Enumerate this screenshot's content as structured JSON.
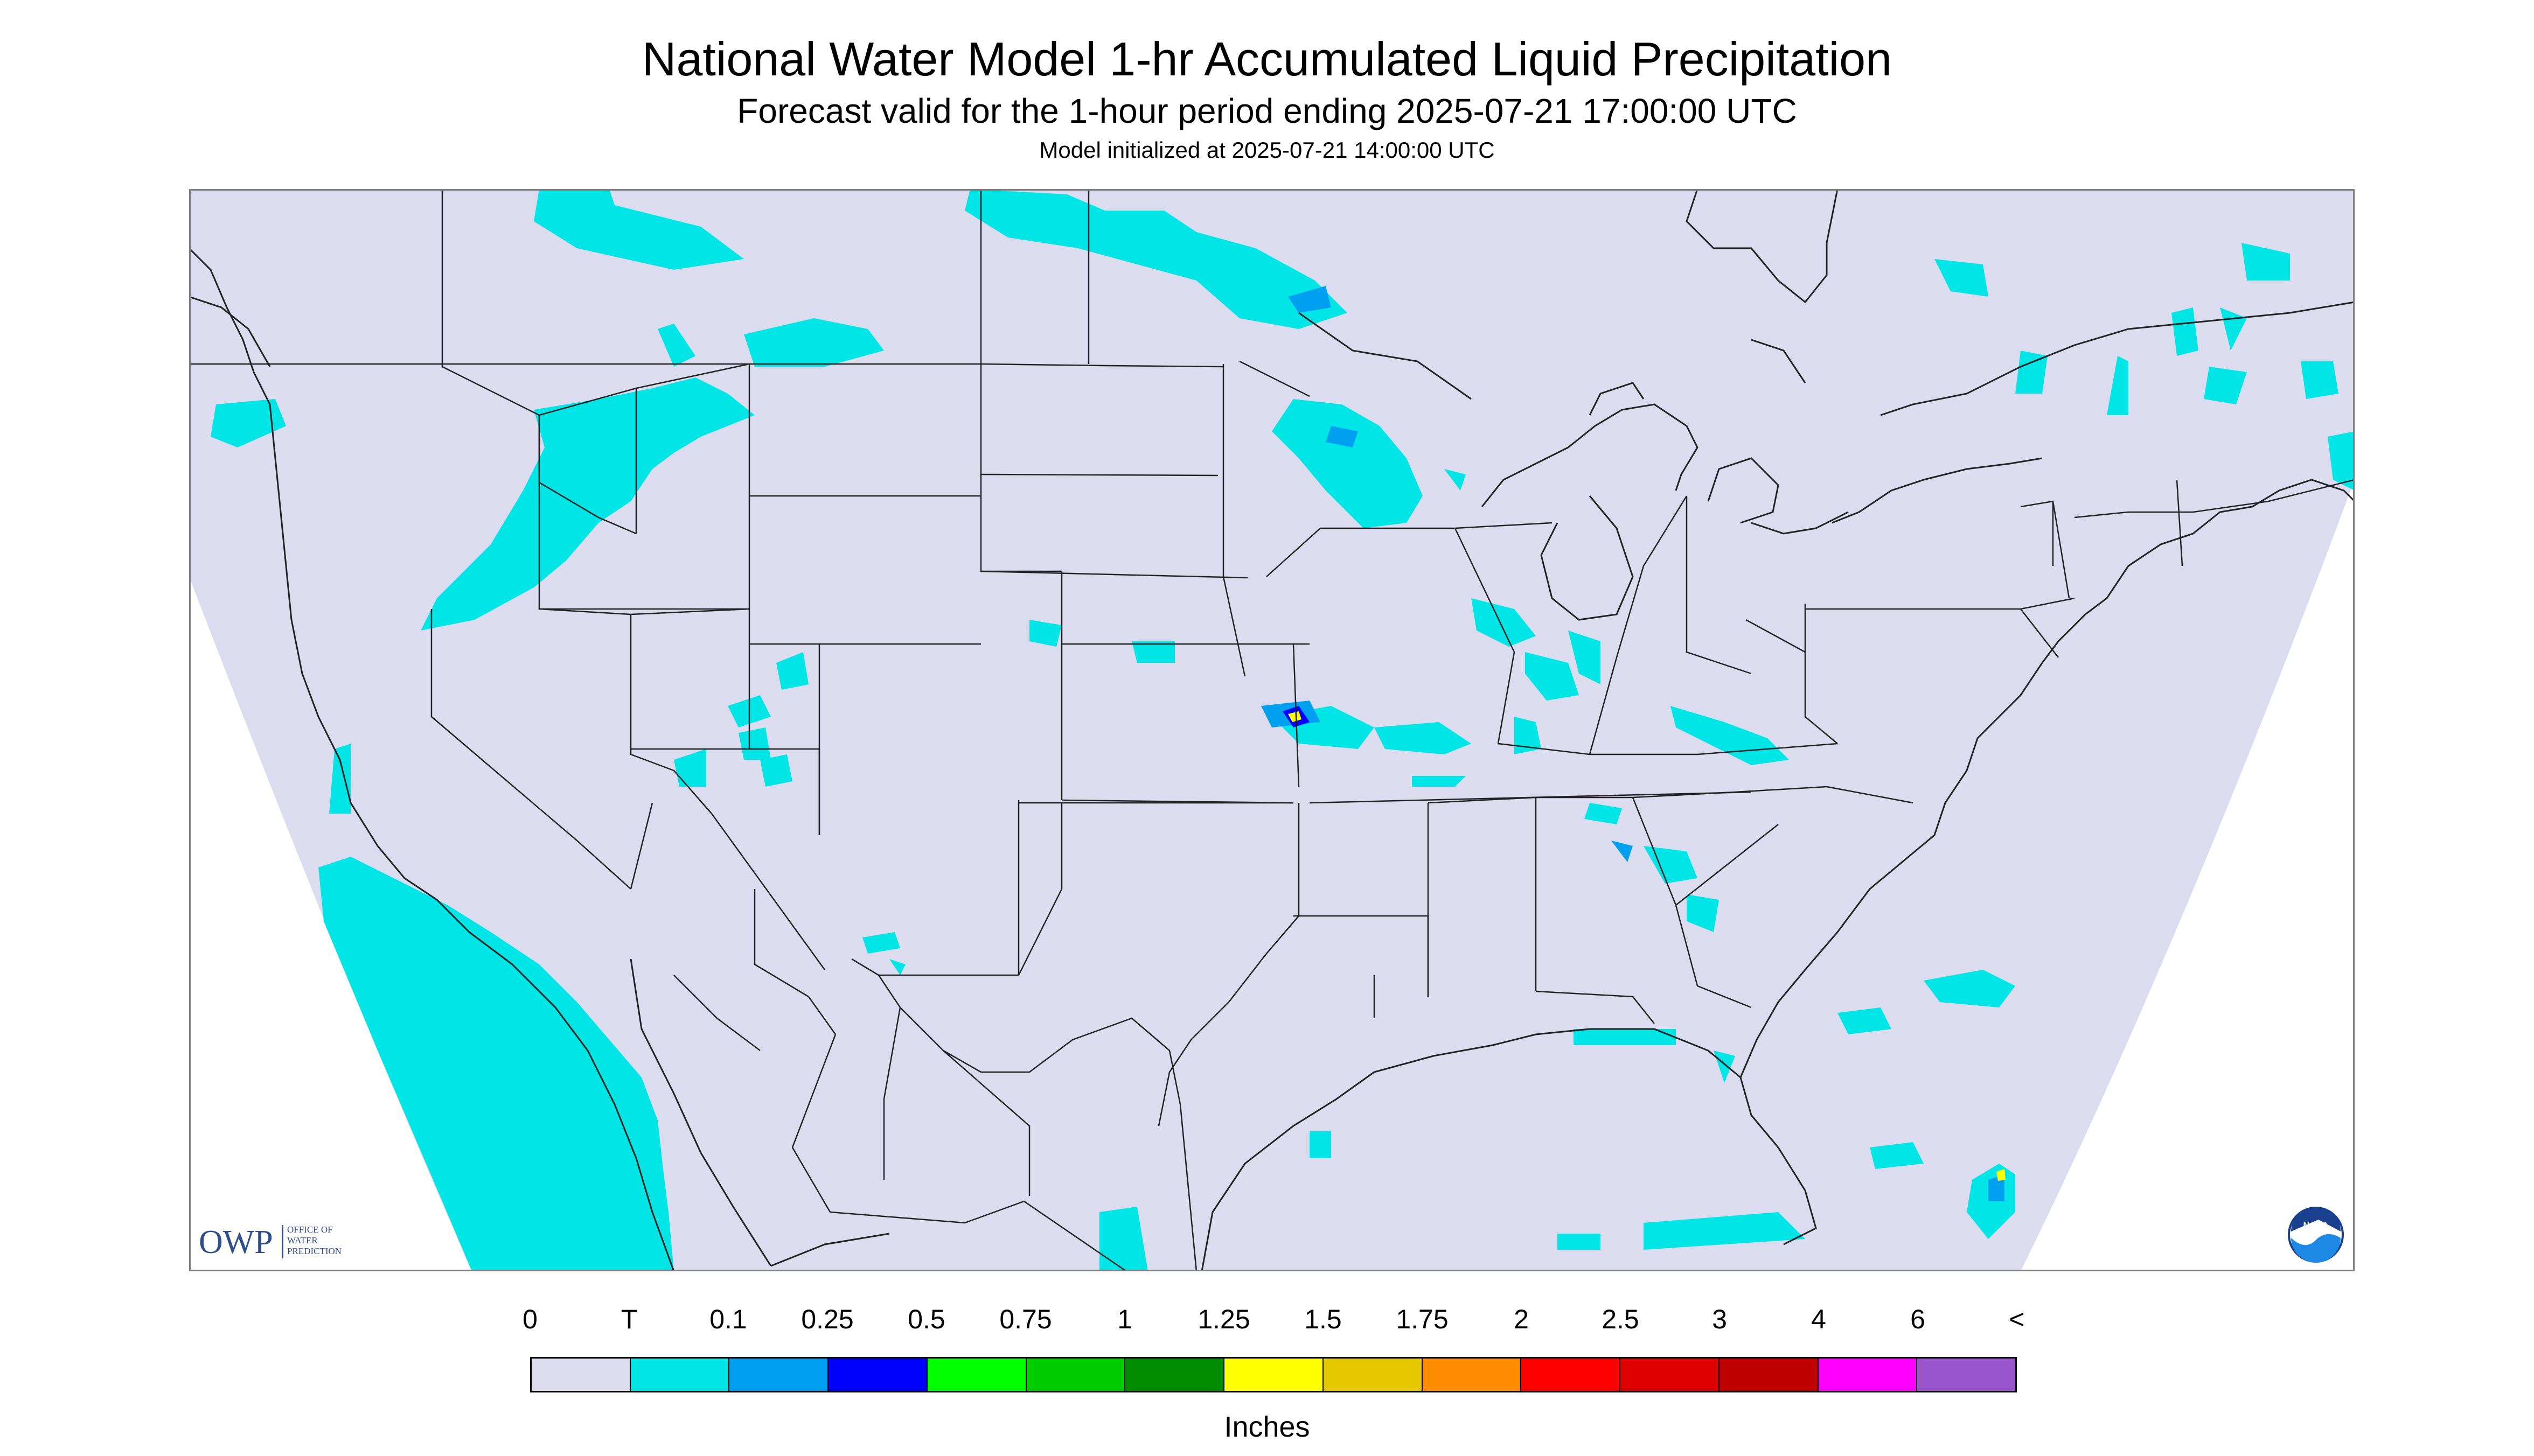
{
  "header": {
    "title": "National Water Model 1-hr Accumulated Liquid Precipitation",
    "subtitle": "Forecast valid for the 1-hour period ending 2025-07-21 17:00:00 UTC",
    "init": "Model initialized at 2025-07-21 14:00:00 UTC"
  },
  "map": {
    "background_color": "#dcdcf0",
    "border_color": "#7f7f7f",
    "line_color": "#222222",
    "logo_owp": {
      "abbr": "OWP",
      "line1": "OFFICE OF",
      "line2": "WATER",
      "line3": "PREDICTION",
      "color": "#2e4d8c"
    },
    "logo_noaa": {
      "text": "NOAA",
      "icon": "noaa-logo-icon"
    }
  },
  "legend": {
    "labels": [
      "0",
      "T",
      "0.1",
      "0.25",
      "0.5",
      "0.75",
      "1",
      "1.25",
      "1.5",
      "1.75",
      "2",
      "2.5",
      "3",
      "4",
      "6",
      "<"
    ],
    "colors": [
      "#dcdcf0",
      "#00e6e6",
      "#00a0f0",
      "#0000ff",
      "#00ff00",
      "#00cd00",
      "#008b00",
      "#ffff00",
      "#e6c800",
      "#ff8c00",
      "#ff0000",
      "#dc0000",
      "#be0000",
      "#ff00ff",
      "#9955cc"
    ],
    "units": "Inches"
  }
}
